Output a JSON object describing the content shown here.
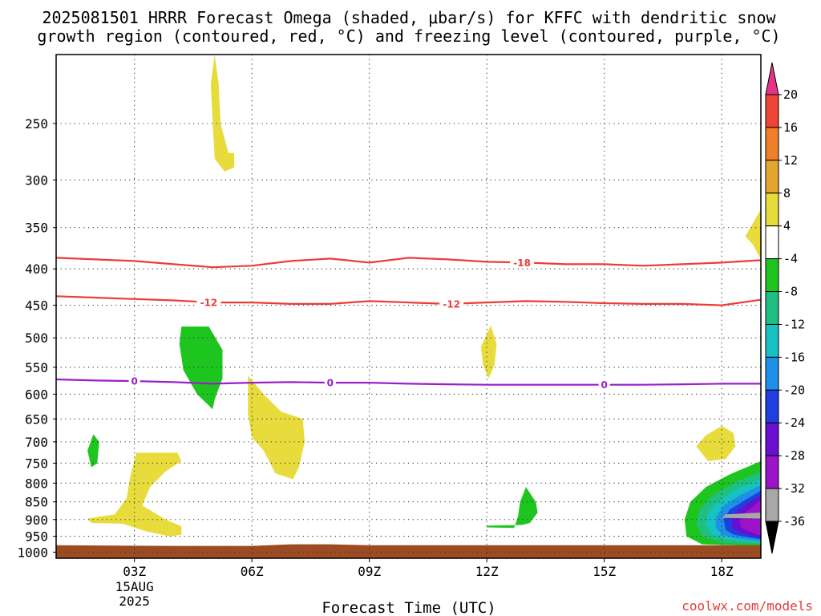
{
  "title_line1": "2025081501 HRRR Forecast Omega (shaded, μbar/s) for KFFC with dendritic snow",
  "title_line2": "growth region (contoured, red, °C) and freezing level (contoured, purple, °C)",
  "credit": "coolwx.com/models",
  "chart_data": {
    "type": "time-height cross section",
    "xlabel": "Forecast Time (UTC)",
    "ylabel": "",
    "x_range_hours_utc": [
      1.0,
      19.0
    ],
    "y_range_hpa": [
      200,
      1020
    ],
    "y_scale": "log-pressure",
    "x_ticks": [
      {
        "hour": 3,
        "label": "03Z",
        "sub": [
          "15AUG",
          "2025"
        ]
      },
      {
        "hour": 6,
        "label": "06Z"
      },
      {
        "hour": 9,
        "label": "09Z"
      },
      {
        "hour": 12,
        "label": "12Z"
      },
      {
        "hour": 15,
        "label": "15Z"
      },
      {
        "hour": 18,
        "label": "18Z"
      }
    ],
    "y_ticks": [
      250,
      300,
      350,
      400,
      450,
      500,
      550,
      600,
      650,
      700,
      750,
      800,
      850,
      900,
      950,
      1000
    ],
    "grid": "dotted",
    "contours": [
      {
        "name": "-18",
        "color": "#ee3b3b",
        "points": [
          [
            1,
            386
          ],
          [
            3,
            390
          ],
          [
            4,
            394
          ],
          [
            5,
            398
          ],
          [
            6,
            396
          ],
          [
            7,
            390
          ],
          [
            8,
            387
          ],
          [
            9,
            392
          ],
          [
            10,
            386
          ],
          [
            11,
            388
          ],
          [
            12,
            391
          ],
          [
            13,
            392
          ],
          [
            14,
            394
          ],
          [
            15,
            394
          ],
          [
            16,
            396
          ],
          [
            17,
            394
          ],
          [
            18,
            392
          ],
          [
            19,
            389
          ]
        ],
        "labels": [
          {
            "hour": 12.9,
            "text": "-18"
          }
        ]
      },
      {
        "name": "-12",
        "color": "#ee3b3b",
        "points": [
          [
            1,
            437
          ],
          [
            3,
            441
          ],
          [
            4,
            443
          ],
          [
            5,
            446
          ],
          [
            6,
            446
          ],
          [
            7,
            448
          ],
          [
            8,
            448
          ],
          [
            9,
            444
          ],
          [
            10,
            446
          ],
          [
            11,
            448
          ],
          [
            12,
            446
          ],
          [
            13,
            444
          ],
          [
            14,
            445
          ],
          [
            15,
            447
          ],
          [
            16,
            448
          ],
          [
            17,
            448
          ],
          [
            18,
            450
          ],
          [
            19,
            442
          ]
        ],
        "labels": [
          {
            "hour": 4.9,
            "text": "-12"
          },
          {
            "hour": 11.1,
            "text": "-12"
          }
        ]
      },
      {
        "name": "0",
        "color": "#9a1fc9",
        "points": [
          [
            1,
            572
          ],
          [
            2,
            574
          ],
          [
            3,
            575
          ],
          [
            4,
            577
          ],
          [
            5,
            580
          ],
          [
            6,
            578
          ],
          [
            7,
            577
          ],
          [
            8,
            578
          ],
          [
            9,
            578
          ],
          [
            10,
            580
          ],
          [
            11,
            581
          ],
          [
            12,
            582
          ],
          [
            13,
            582
          ],
          [
            14,
            582
          ],
          [
            15,
            582
          ],
          [
            16,
            582
          ],
          [
            17,
            581
          ],
          [
            18,
            580
          ],
          [
            19,
            580
          ]
        ],
        "labels": [
          {
            "hour": 3.0,
            "text": "0"
          },
          {
            "hour": 8.0,
            "text": "0"
          },
          {
            "hour": 15.0,
            "text": "0"
          }
        ]
      }
    ],
    "shaded_regions": [
      {
        "value_range": [
          4,
          8
        ],
        "color": "#e7dc3c",
        "points": [
          [
            5.05,
            200
          ],
          [
            5.15,
            220
          ],
          [
            5.2,
            250
          ],
          [
            5.4,
            275
          ],
          [
            5.55,
            275
          ],
          [
            5.55,
            288
          ],
          [
            5.3,
            292
          ],
          [
            5.05,
            280
          ],
          [
            5.0,
            250
          ],
          [
            4.95,
            220
          ]
        ]
      },
      {
        "value_range": [
          4,
          8
        ],
        "color": "#e7dc3c",
        "points": [
          [
            19.0,
            330
          ],
          [
            18.8,
            345
          ],
          [
            18.6,
            360
          ],
          [
            18.8,
            370
          ],
          [
            19.0,
            388
          ]
        ]
      },
      {
        "value_range": [
          -8,
          -4
        ],
        "color": "#1ec51e",
        "points": [
          [
            4.2,
            482
          ],
          [
            4.9,
            482
          ],
          [
            5.25,
            520
          ],
          [
            5.25,
            570
          ],
          [
            5.05,
            610
          ],
          [
            5.0,
            630
          ],
          [
            4.6,
            600
          ],
          [
            4.25,
            555
          ],
          [
            4.15,
            510
          ]
        ]
      },
      {
        "value_range": [
          4,
          8
        ],
        "color": "#e7dc3c",
        "points": [
          [
            12.1,
            480
          ],
          [
            12.25,
            510
          ],
          [
            12.2,
            545
          ],
          [
            12.05,
            570
          ],
          [
            11.9,
            545
          ],
          [
            11.85,
            515
          ]
        ]
      },
      {
        "value_range": [
          4,
          8
        ],
        "color": "#e7dc3c",
        "points": [
          [
            5.9,
            565
          ],
          [
            6.3,
            600
          ],
          [
            6.75,
            635
          ],
          [
            7.3,
            650
          ],
          [
            7.35,
            700
          ],
          [
            7.2,
            760
          ],
          [
            7.05,
            790
          ],
          [
            6.6,
            775
          ],
          [
            6.3,
            720
          ],
          [
            6.0,
            690
          ],
          [
            5.9,
            640
          ]
        ]
      },
      {
        "value_range": [
          -8,
          -4
        ],
        "color": "#1ec51e",
        "points": [
          [
            1.95,
            683
          ],
          [
            2.1,
            700
          ],
          [
            2.05,
            750
          ],
          [
            1.9,
            760
          ],
          [
            1.8,
            720
          ]
        ]
      },
      {
        "value_range": [
          4,
          8
        ],
        "color": "#e7dc3c",
        "points": [
          [
            3.05,
            725
          ],
          [
            4.1,
            725
          ],
          [
            4.2,
            745
          ],
          [
            3.8,
            770
          ],
          [
            3.4,
            810
          ],
          [
            3.2,
            860
          ],
          [
            3.8,
            900
          ],
          [
            4.2,
            920
          ],
          [
            4.2,
            945
          ],
          [
            3.9,
            950
          ],
          [
            3.3,
            935
          ],
          [
            2.7,
            912
          ],
          [
            1.9,
            910
          ],
          [
            1.8,
            897
          ],
          [
            2.5,
            885
          ],
          [
            2.8,
            840
          ],
          [
            2.9,
            780
          ]
        ]
      },
      {
        "value_range": [
          4,
          8
        ],
        "color": "#e7dc3c",
        "points": [
          [
            18.0,
            665
          ],
          [
            18.3,
            680
          ],
          [
            18.35,
            710
          ],
          [
            18.1,
            740
          ],
          [
            17.65,
            745
          ],
          [
            17.35,
            710
          ],
          [
            17.6,
            685
          ]
        ]
      },
      {
        "value_range": [
          -8,
          -4
        ],
        "color": "#1ec51e",
        "points": [
          [
            13.0,
            810
          ],
          [
            13.25,
            850
          ],
          [
            13.3,
            880
          ],
          [
            13.1,
            910
          ],
          [
            12.9,
            916
          ],
          [
            12.0,
            918
          ],
          [
            12.0,
            923
          ],
          [
            12.7,
            925
          ],
          [
            12.8,
            890
          ],
          [
            12.85,
            850
          ]
        ]
      },
      {
        "value_range": [
          -8,
          -4
        ],
        "color": "#1ec51e",
        "points": [
          [
            19.0,
            745
          ],
          [
            18.2,
            778
          ],
          [
            17.6,
            810
          ],
          [
            17.2,
            850
          ],
          [
            17.05,
            900
          ],
          [
            17.1,
            950
          ],
          [
            17.5,
            975
          ],
          [
            19.0,
            980
          ]
        ]
      },
      {
        "value_range": [
          -12,
          -8
        ],
        "color": "#1fbf82",
        "points": [
          [
            19.0,
            770
          ],
          [
            18.3,
            800
          ],
          [
            17.8,
            830
          ],
          [
            17.45,
            870
          ],
          [
            17.35,
            910
          ],
          [
            17.5,
            950
          ],
          [
            18.0,
            970
          ],
          [
            19.0,
            975
          ]
        ]
      },
      {
        "value_range": [
          -16,
          -12
        ],
        "color": "#17c2c2",
        "points": [
          [
            19.0,
            790
          ],
          [
            18.4,
            815
          ],
          [
            17.95,
            845
          ],
          [
            17.65,
            880
          ],
          [
            17.6,
            915
          ],
          [
            17.75,
            945
          ],
          [
            18.2,
            962
          ],
          [
            19.0,
            970
          ]
        ]
      },
      {
        "value_range": [
          -20,
          -16
        ],
        "color": "#1f90e8",
        "points": [
          [
            19.0,
            805
          ],
          [
            18.5,
            830
          ],
          [
            18.05,
            860
          ],
          [
            17.85,
            895
          ],
          [
            17.85,
            925
          ],
          [
            18.0,
            945
          ],
          [
            18.4,
            958
          ],
          [
            19.0,
            965
          ]
        ]
      },
      {
        "value_range": [
          -24,
          -20
        ],
        "color": "#1f3fe0",
        "points": [
          [
            19.0,
            820
          ],
          [
            18.6,
            845
          ],
          [
            18.2,
            872
          ],
          [
            18.05,
            900
          ],
          [
            18.1,
            930
          ],
          [
            18.3,
            945
          ],
          [
            19.0,
            960
          ]
        ]
      },
      {
        "value_range": [
          -28,
          -24
        ],
        "color": "#6a0fd0",
        "points": [
          [
            19.0,
            832
          ],
          [
            18.7,
            852
          ],
          [
            18.35,
            880
          ],
          [
            18.25,
            905
          ],
          [
            18.3,
            928
          ],
          [
            18.55,
            942
          ],
          [
            19.0,
            955
          ]
        ]
      },
      {
        "value_range": [
          -32,
          -28
        ],
        "color": "#9b14c8",
        "points": [
          [
            19.0,
            845
          ],
          [
            18.8,
            862
          ],
          [
            18.55,
            885
          ],
          [
            18.45,
            905
          ],
          [
            18.5,
            925
          ],
          [
            18.7,
            935
          ],
          [
            19.0,
            948
          ]
        ]
      },
      {
        "value_range": [
          -36,
          -32
        ],
        "color": "#a8a8a8",
        "points": [
          [
            19.0,
            880
          ],
          [
            18.1,
            885
          ],
          [
            18.0,
            895
          ],
          [
            19.0,
            897
          ]
        ]
      }
    ],
    "terrain": {
      "color": "#9c4b22",
      "points": [
        [
          1,
          978
        ],
        [
          4,
          980
        ],
        [
          6,
          980
        ],
        [
          7,
          975
        ],
        [
          8,
          975
        ],
        [
          9,
          978
        ],
        [
          19,
          978
        ]
      ]
    },
    "colorbar": {
      "boundaries": [
        "20",
        "16",
        "12",
        "8",
        "4",
        "-4",
        "-8",
        "-12",
        "-16",
        "-20",
        "-24",
        "-28",
        "-32",
        "-36"
      ],
      "colors": [
        "#e8328a",
        "#f04437",
        "#f07f29",
        "#e5a631",
        "#e7dc3c",
        "#ffffff",
        "#1ec51e",
        "#1fbf82",
        "#17c2c2",
        "#1f90e8",
        "#1f3fe0",
        "#6a0fd0",
        "#9b14c8",
        "#a8a8a8",
        "#000000"
      ]
    }
  }
}
